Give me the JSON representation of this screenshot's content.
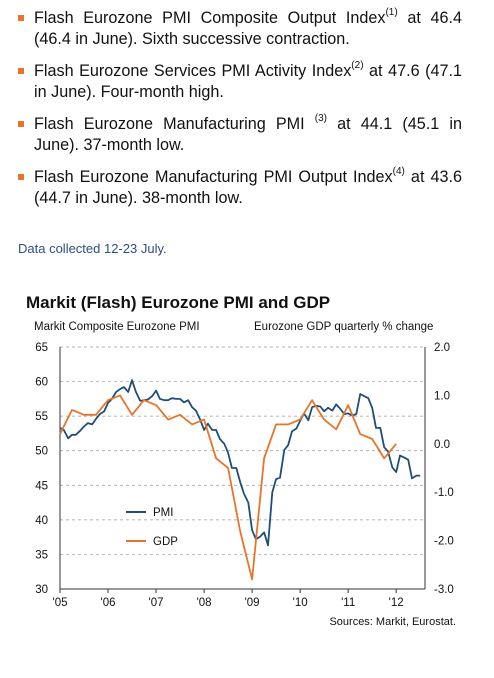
{
  "bullets": [
    {
      "pre": "Flash Eurozone PMI Composite Output Index",
      "sup": "(1)",
      "post": " at 46.4 (46.4 in June). Sixth successive contraction."
    },
    {
      "pre": "Flash Eurozone Services PMI Activity Index",
      "sup": "(2)",
      "post": " at 47.6 (47.1 in June). Four-month high."
    },
    {
      "pre": "Flash Eurozone Manufacturing PMI ",
      "sup": "(3)",
      "post": " at 44.1 (45.1 in June). 37-month low."
    },
    {
      "pre": "Flash Eurozone Manufacturing PMI Output Index",
      "sup": "(4)",
      "post": " at 43.6 (44.7 in June). 38-month low."
    }
  ],
  "note": "Data collected 12-23 July.",
  "source": "Sources: Markit, Eurostat.",
  "colors": {
    "pmi": "#1f4e79",
    "gdp": "#e8742a",
    "bullet": "#e8742a",
    "note": "#2b4f80"
  },
  "chart_data": {
    "type": "line",
    "title": "Markit (Flash) Eurozone PMI and GDP",
    "ylabel_left": "Markit Composite Eurozone PMI",
    "ylabel_right": "Eurozone GDP quarterly % change",
    "ylim_left": [
      30,
      65
    ],
    "ylim_right": [
      -3.0,
      2.0
    ],
    "yticks_left": [
      "65",
      "60",
      "55",
      "50",
      "45",
      "40",
      "35",
      "30"
    ],
    "yticks_right": [
      "2.0",
      "1.0",
      "0.0",
      "-1.0",
      "-2.0",
      "-3.0"
    ],
    "xticks": [
      "'05",
      "'06",
      "'07",
      "'08",
      "'09",
      "'10",
      "'11",
      "'12"
    ],
    "xlim": [
      2005,
      2012.6
    ],
    "grid": true,
    "legend": "middle-left",
    "series": [
      {
        "name": "PMI",
        "axis": "left",
        "x": [
          2005.0,
          2005.08,
          2005.17,
          2005.25,
          2005.33,
          2005.42,
          2005.5,
          2005.58,
          2005.67,
          2005.75,
          2005.83,
          2005.92,
          2006.0,
          2006.08,
          2006.17,
          2006.25,
          2006.33,
          2006.42,
          2006.5,
          2006.58,
          2006.67,
          2006.75,
          2006.83,
          2006.92,
          2007.0,
          2007.08,
          2007.17,
          2007.25,
          2007.33,
          2007.42,
          2007.5,
          2007.58,
          2007.67,
          2007.75,
          2007.83,
          2007.92,
          2008.0,
          2008.08,
          2008.17,
          2008.25,
          2008.33,
          2008.42,
          2008.5,
          2008.58,
          2008.67,
          2008.75,
          2008.83,
          2008.92,
          2009.0,
          2009.08,
          2009.17,
          2009.25,
          2009.33,
          2009.42,
          2009.5,
          2009.58,
          2009.67,
          2009.75,
          2009.83,
          2009.92,
          2010.0,
          2010.08,
          2010.17,
          2010.25,
          2010.33,
          2010.42,
          2010.5,
          2010.58,
          2010.67,
          2010.75,
          2010.83,
          2010.92,
          2011.0,
          2011.08,
          2011.17,
          2011.25,
          2011.33,
          2011.42,
          2011.5,
          2011.58,
          2011.67,
          2011.75,
          2011.83,
          2011.92,
          2012.0,
          2012.08,
          2012.17,
          2012.25,
          2012.33,
          2012.42,
          2012.5
        ],
        "values": [
          53.3,
          53.0,
          51.8,
          52.3,
          52.3,
          52.9,
          53.5,
          54.0,
          53.8,
          54.6,
          55.3,
          55.7,
          56.9,
          57.5,
          58.5,
          58.9,
          59.2,
          58.5,
          60.2,
          58.5,
          57.2,
          57.3,
          57.4,
          57.9,
          58.7,
          57.5,
          57.3,
          57.3,
          57.6,
          57.5,
          57.5,
          57.0,
          57.3,
          56.3,
          55.8,
          54.5,
          53.0,
          53.9,
          53.0,
          53.0,
          51.7,
          51.0,
          49.7,
          47.5,
          47.5,
          45.5,
          43.8,
          42.5,
          38.5,
          37.2,
          37.6,
          38.2,
          36.3,
          44.0,
          45.9,
          46.1,
          50.1,
          50.8,
          52.8,
          53.2,
          54.3,
          55.4,
          54.4,
          56.3,
          56.5,
          56.4,
          55.7,
          56.2,
          55.8,
          56.7,
          56.1,
          55.3,
          55.4,
          55.1,
          55.3,
          58.2,
          57.9,
          57.6,
          56.2,
          53.3,
          53.3,
          50.5,
          49.9,
          47.6,
          46.9,
          49.3,
          49.0,
          48.7,
          46.0,
          46.4,
          46.4
        ]
      },
      {
        "name": "GDP",
        "axis": "right",
        "x": [
          2005.0,
          2005.25,
          2005.5,
          2005.75,
          2006.0,
          2006.25,
          2006.5,
          2006.75,
          2007.0,
          2007.25,
          2007.5,
          2007.75,
          2008.0,
          2008.25,
          2008.5,
          2008.75,
          2009.0,
          2009.25,
          2009.5,
          2009.75,
          2010.0,
          2010.25,
          2010.5,
          2010.75,
          2011.0,
          2011.25,
          2011.5,
          2011.75,
          2012.0
        ],
        "values": [
          0.2,
          0.7,
          0.6,
          0.6,
          0.9,
          1.0,
          0.6,
          0.9,
          0.8,
          0.5,
          0.6,
          0.4,
          0.5,
          -0.3,
          -0.5,
          -1.8,
          -2.8,
          -0.3,
          0.4,
          0.4,
          0.5,
          0.9,
          0.5,
          0.3,
          0.8,
          0.2,
          0.1,
          -0.3,
          0.0
        ]
      }
    ]
  }
}
